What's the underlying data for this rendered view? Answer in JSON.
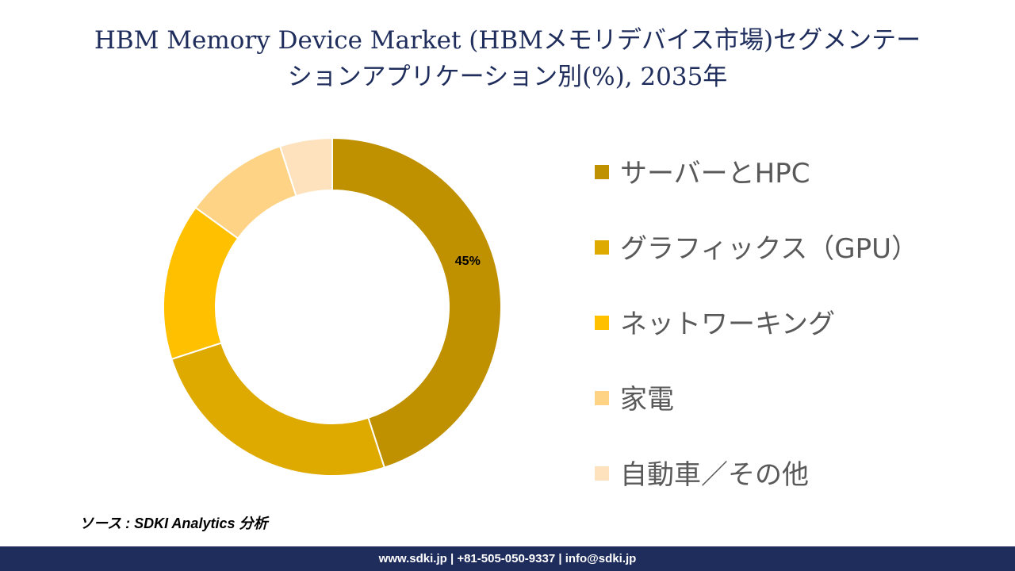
{
  "title": {
    "line1": "HBM Memory Device Market (HBMメモリデバイス市場)セグメンテー",
    "line2": "ションアプリケーション別(%), 2035年"
  },
  "chart_data": {
    "type": "pie",
    "donut": true,
    "title": "HBM Memory Device Market (HBMメモリデバイス市場)セグメンテーションアプリケーション別(%), 2035年",
    "categories": [
      "サーバーとHPC",
      "グラフィックス（GPU）",
      "ネットワーキング",
      "家電",
      "自動車／その他"
    ],
    "values": [
      45,
      25,
      15,
      10,
      5
    ],
    "colors": [
      "#bf9000",
      "#dfaa00",
      "#ffc000",
      "#ffd385",
      "#fde2bd"
    ],
    "data_labels": [
      "45%",
      "",
      "",
      "",
      ""
    ],
    "legend_position": "right"
  },
  "source": "ソース : SDKI Analytics 分析",
  "footer": "www.sdki.jp | +81-505-050-9337 | info@sdki.jp"
}
